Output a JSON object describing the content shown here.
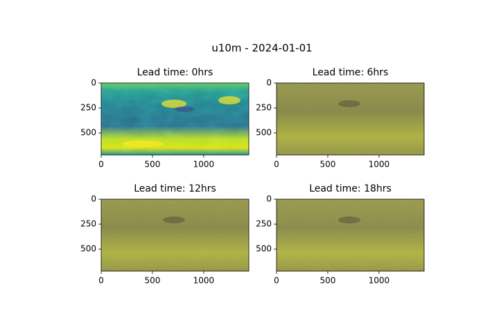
{
  "title": "u10m - 2024-01-01",
  "chart_data": [
    {
      "type": "image",
      "title": "Lead time: 0hrs",
      "xlim": [
        0,
        1440
      ],
      "ylim": [
        721,
        0
      ],
      "xticks": [
        0,
        500,
        1000
      ],
      "yticks": [
        0,
        250,
        500
      ]
    },
    {
      "type": "image",
      "title": "Lead time: 6hrs",
      "xlim": [
        0,
        1440
      ],
      "ylim": [
        721,
        0
      ],
      "xticks": [
        0,
        500,
        1000
      ],
      "yticks": [
        0,
        250,
        500
      ]
    },
    {
      "type": "image",
      "title": "Lead time: 12hrs",
      "xlim": [
        0,
        1440
      ],
      "ylim": [
        721,
        0
      ],
      "xticks": [
        0,
        500,
        1000
      ],
      "yticks": [
        0,
        250,
        500
      ]
    },
    {
      "type": "image",
      "title": "Lead time: 18hrs",
      "xlim": [
        0,
        1440
      ],
      "ylim": [
        721,
        0
      ],
      "xticks": [
        0,
        500,
        1000
      ],
      "yticks": [
        0,
        250,
        500
      ]
    }
  ]
}
